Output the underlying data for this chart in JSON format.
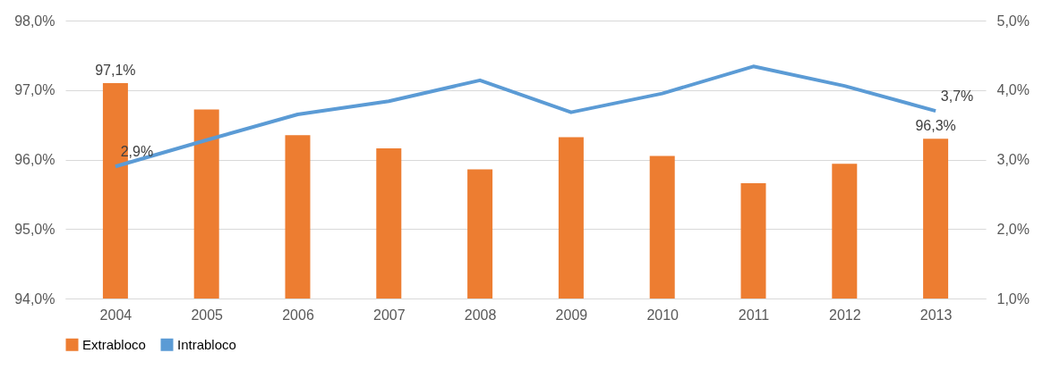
{
  "chart_data": {
    "type": "bar",
    "categories": [
      "2004",
      "2005",
      "2006",
      "2007",
      "2008",
      "2009",
      "2010",
      "2011",
      "2012",
      "2013"
    ],
    "series": [
      {
        "name": "Extrabloco",
        "color": "#ed7d31",
        "values": [
          97.1,
          96.72,
          96.35,
          96.16,
          95.86,
          96.32,
          96.05,
          95.66,
          95.94,
          96.3
        ],
        "value_labels": [
          "97,1%",
          null,
          null,
          null,
          null,
          null,
          null,
          null,
          null,
          "96,3%"
        ]
      },
      {
        "name": "Intrabloco",
        "type": "line",
        "axis": "y2",
        "color": "#5b9bd5",
        "values": [
          2.9,
          3.28,
          3.65,
          3.84,
          4.14,
          3.68,
          3.95,
          4.34,
          4.06,
          3.7
        ],
        "value_labels": [
          "2,9%",
          null,
          null,
          null,
          null,
          null,
          null,
          null,
          null,
          "3,7%"
        ]
      }
    ],
    "ylim": [
      94,
      98
    ],
    "yticks": [
      {
        "value": 94,
        "label": "94,0%"
      },
      {
        "value": 95,
        "label": "95,0%"
      },
      {
        "value": 96,
        "label": "96,0%"
      },
      {
        "value": 97,
        "label": "97,0%"
      },
      {
        "value": 98,
        "label": "98,0%"
      }
    ],
    "y2lim": [
      1,
      5
    ],
    "y2ticks": [
      {
        "value": 1,
        "label": "1,0%"
      },
      {
        "value": 2,
        "label": "2,0%"
      },
      {
        "value": 3,
        "label": "3,0%"
      },
      {
        "value": 4,
        "label": "4,0%"
      },
      {
        "value": 5,
        "label": "5,0%"
      }
    ],
    "grid": "y",
    "legend": "bottom",
    "marker": "none",
    "line_style": "solid"
  }
}
